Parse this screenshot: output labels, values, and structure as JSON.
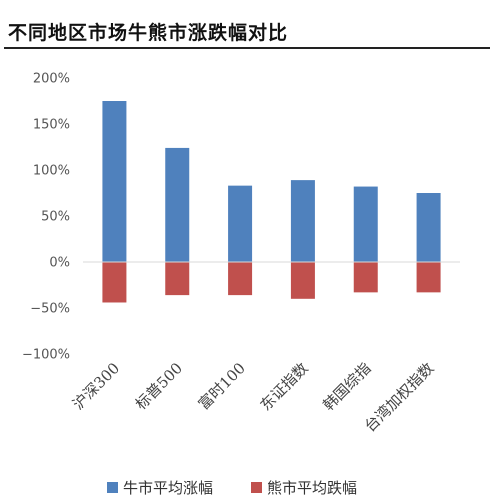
{
  "header": {
    "title": "不同地区市场牛熊市涨跌幅对比"
  },
  "chart_data": {
    "type": "bar",
    "title": "不同地区市场牛熊市涨跌幅对比",
    "categories": [
      "沪深300",
      "标普500",
      "富时100",
      "东证指数",
      "韩国综指",
      "台湾加权指数"
    ],
    "series": [
      {
        "name": "牛市平均涨幅",
        "color": "#4f81bd",
        "values": [
          175,
          124,
          83,
          89,
          82,
          75
        ]
      },
      {
        "name": "熊市平均跌幅",
        "color": "#c0504d",
        "values": [
          -44,
          -36,
          -36,
          -40,
          -33,
          -33
        ]
      }
    ],
    "ylim": [
      -100,
      200
    ],
    "yticks": [
      200,
      150,
      100,
      50,
      0,
      -50,
      -100
    ],
    "ytick_labels": [
      "200%",
      "150%",
      "100%",
      "50%",
      "0%",
      "−50%",
      "−100%"
    ],
    "grid": false,
    "legend": "bottom"
  }
}
